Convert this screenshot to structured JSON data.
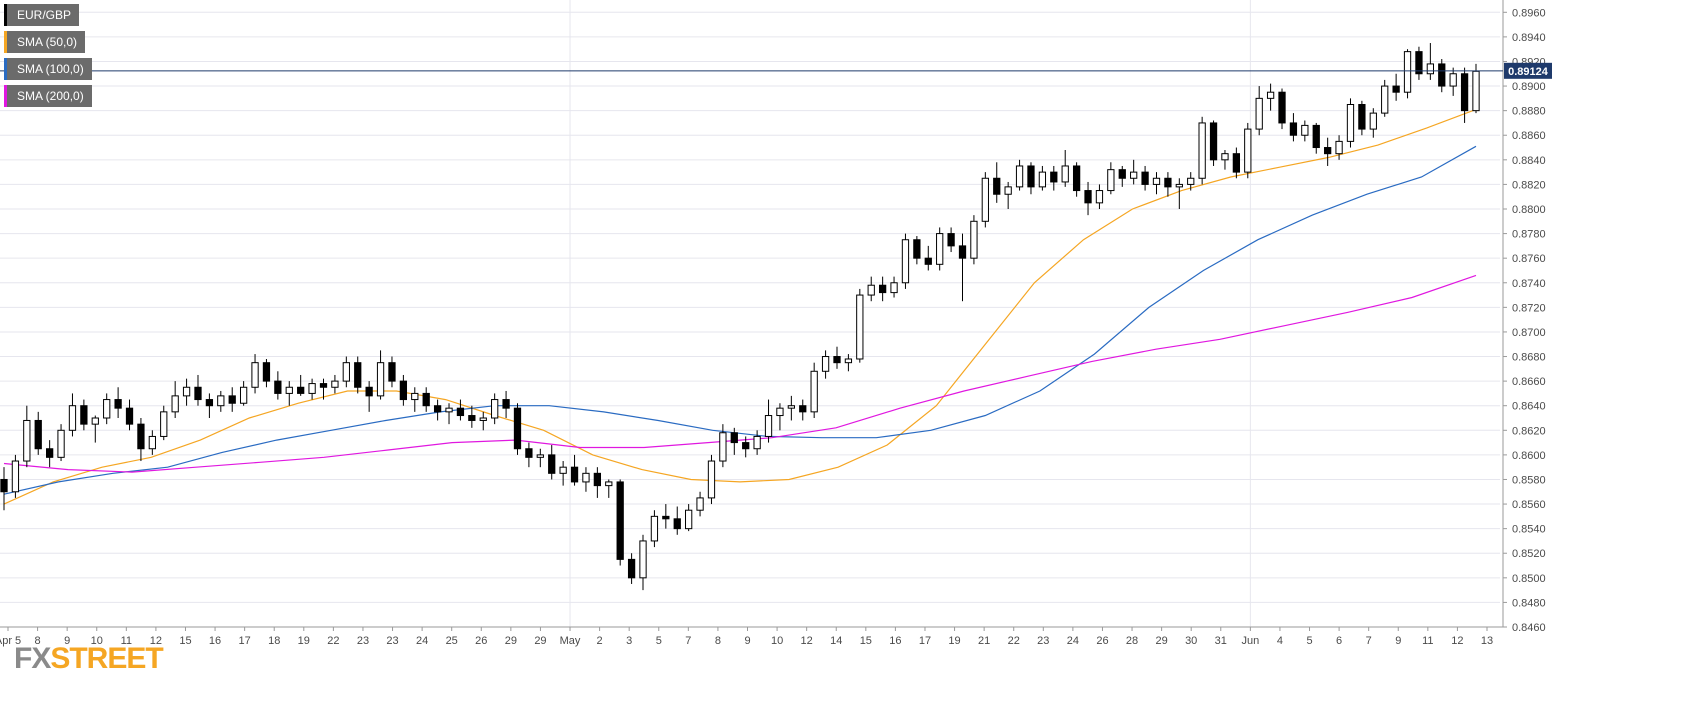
{
  "legend": [
    {
      "label": "EUR/GBP",
      "color": "#000000"
    },
    {
      "label": "SMA (50,0)",
      "color": "#f5a623"
    },
    {
      "label": "SMA (100,0)",
      "color": "#2a6bc2"
    },
    {
      "label": "SMA (200,0)",
      "color": "#e018e0"
    }
  ],
  "logo": {
    "part1": "FX",
    "part2": "STREET",
    "color1": "#8a8a8a",
    "color2": "#f5a623"
  },
  "chart_data": {
    "type": "candlestick",
    "symbol": "EUR/GBP",
    "ylim": [
      0.846,
      0.897
    ],
    "y_ticks": [
      0.846,
      0.848,
      0.85,
      0.852,
      0.854,
      0.856,
      0.858,
      0.86,
      0.862,
      0.864,
      0.866,
      0.868,
      0.87,
      0.872,
      0.874,
      0.876,
      0.878,
      0.88,
      0.882,
      0.884,
      0.886,
      0.888,
      0.89,
      0.892,
      0.894,
      0.896
    ],
    "x_tick_labels": [
      "Apr 5",
      "8",
      "9",
      "10",
      "11",
      "12",
      "15",
      "16",
      "17",
      "18",
      "19",
      "22",
      "23",
      "23",
      "24",
      "25",
      "26",
      "29",
      "29",
      "May",
      "2",
      "3",
      "5",
      "7",
      "8",
      "9",
      "10",
      "12",
      "14",
      "15",
      "16",
      "17",
      "19",
      "21",
      "22",
      "23",
      "24",
      "26",
      "28",
      "29",
      "30",
      "31",
      "Jun",
      "4",
      "5",
      "6",
      "7",
      "9",
      "11",
      "12",
      "13"
    ],
    "current_price": 0.89124,
    "current_price_label": "0.89124",
    "grid": true,
    "candles": [
      [
        0.858,
        0.859,
        0.8555,
        0.857
      ],
      [
        0.857,
        0.86,
        0.8565,
        0.8595
      ],
      [
        0.8595,
        0.864,
        0.859,
        0.8628
      ],
      [
        0.8628,
        0.8635,
        0.86,
        0.8605
      ],
      [
        0.8605,
        0.8612,
        0.859,
        0.8598
      ],
      [
        0.8598,
        0.8625,
        0.8595,
        0.862
      ],
      [
        0.862,
        0.865,
        0.8615,
        0.864
      ],
      [
        0.864,
        0.8645,
        0.862,
        0.8625
      ],
      [
        0.8625,
        0.8632,
        0.861,
        0.863
      ],
      [
        0.863,
        0.865,
        0.8625,
        0.8645
      ],
      [
        0.8645,
        0.8655,
        0.863,
        0.8638
      ],
      [
        0.8638,
        0.8645,
        0.862,
        0.8625
      ],
      [
        0.8625,
        0.863,
        0.8595,
        0.8605
      ],
      [
        0.8605,
        0.862,
        0.86,
        0.8615
      ],
      [
        0.8615,
        0.864,
        0.8612,
        0.8635
      ],
      [
        0.8635,
        0.866,
        0.863,
        0.8648
      ],
      [
        0.8648,
        0.8662,
        0.864,
        0.8655
      ],
      [
        0.8655,
        0.8665,
        0.864,
        0.8645
      ],
      [
        0.8645,
        0.865,
        0.863,
        0.864
      ],
      [
        0.864,
        0.8652,
        0.8635,
        0.8648
      ],
      [
        0.8648,
        0.8655,
        0.8635,
        0.8642
      ],
      [
        0.8642,
        0.866,
        0.864,
        0.8655
      ],
      [
        0.8655,
        0.8682,
        0.865,
        0.8675
      ],
      [
        0.8675,
        0.8678,
        0.8655,
        0.866
      ],
      [
        0.866,
        0.8668,
        0.8645,
        0.865
      ],
      [
        0.865,
        0.866,
        0.864,
        0.8655
      ],
      [
        0.8655,
        0.8665,
        0.8648,
        0.865
      ],
      [
        0.865,
        0.8662,
        0.8645,
        0.8658
      ],
      [
        0.8658,
        0.8662,
        0.8645,
        0.8655
      ],
      [
        0.8655,
        0.8665,
        0.865,
        0.866
      ],
      [
        0.866,
        0.868,
        0.8655,
        0.8675
      ],
      [
        0.8675,
        0.868,
        0.865,
        0.8655
      ],
      [
        0.8655,
        0.866,
        0.8635,
        0.8648
      ],
      [
        0.8648,
        0.8685,
        0.8645,
        0.8675
      ],
      [
        0.8675,
        0.868,
        0.8655,
        0.866
      ],
      [
        0.866,
        0.8665,
        0.864,
        0.8645
      ],
      [
        0.8645,
        0.8655,
        0.8635,
        0.865
      ],
      [
        0.865,
        0.8655,
        0.8635,
        0.864
      ],
      [
        0.864,
        0.8645,
        0.8628,
        0.8635
      ],
      [
        0.8635,
        0.8642,
        0.8625,
        0.8638
      ],
      [
        0.8638,
        0.8645,
        0.8628,
        0.8632
      ],
      [
        0.8632,
        0.864,
        0.8622,
        0.8628
      ],
      [
        0.8628,
        0.8635,
        0.862,
        0.863
      ],
      [
        0.863,
        0.865,
        0.8625,
        0.8645
      ],
      [
        0.8645,
        0.8652,
        0.863,
        0.8638
      ],
      [
        0.8638,
        0.8642,
        0.86,
        0.8605
      ],
      [
        0.8605,
        0.861,
        0.859,
        0.8598
      ],
      [
        0.8598,
        0.8605,
        0.859,
        0.86
      ],
      [
        0.86,
        0.8608,
        0.858,
        0.8585
      ],
      [
        0.8585,
        0.8595,
        0.8575,
        0.859
      ],
      [
        0.859,
        0.86,
        0.8575,
        0.8578
      ],
      [
        0.8578,
        0.859,
        0.857,
        0.8585
      ],
      [
        0.8585,
        0.859,
        0.8565,
        0.8575
      ],
      [
        0.8575,
        0.858,
        0.8565,
        0.8578
      ],
      [
        0.8578,
        0.858,
        0.851,
        0.8515
      ],
      [
        0.8515,
        0.852,
        0.8495,
        0.85
      ],
      [
        0.85,
        0.8535,
        0.849,
        0.853
      ],
      [
        0.853,
        0.8555,
        0.8525,
        0.855
      ],
      [
        0.855,
        0.856,
        0.854,
        0.8548
      ],
      [
        0.8548,
        0.8558,
        0.8535,
        0.854
      ],
      [
        0.854,
        0.856,
        0.8538,
        0.8555
      ],
      [
        0.8555,
        0.857,
        0.855,
        0.8565
      ],
      [
        0.8565,
        0.86,
        0.856,
        0.8595
      ],
      [
        0.8595,
        0.8625,
        0.859,
        0.8618
      ],
      [
        0.8618,
        0.8622,
        0.86,
        0.861
      ],
      [
        0.861,
        0.8615,
        0.8598,
        0.8605
      ],
      [
        0.8605,
        0.862,
        0.86,
        0.8615
      ],
      [
        0.8615,
        0.8645,
        0.861,
        0.8632
      ],
      [
        0.8632,
        0.8642,
        0.862,
        0.8638
      ],
      [
        0.8638,
        0.8648,
        0.8628,
        0.864
      ],
      [
        0.864,
        0.8645,
        0.8628,
        0.8635
      ],
      [
        0.8635,
        0.8675,
        0.863,
        0.8668
      ],
      [
        0.8668,
        0.8685,
        0.8662,
        0.868
      ],
      [
        0.868,
        0.8688,
        0.867,
        0.8675
      ],
      [
        0.8675,
        0.8682,
        0.8668,
        0.8678
      ],
      [
        0.8678,
        0.8735,
        0.8675,
        0.873
      ],
      [
        0.873,
        0.8745,
        0.8725,
        0.8738
      ],
      [
        0.8738,
        0.8745,
        0.8725,
        0.8732
      ],
      [
        0.8732,
        0.8745,
        0.8728,
        0.874
      ],
      [
        0.874,
        0.878,
        0.8735,
        0.8775
      ],
      [
        0.8775,
        0.8778,
        0.8755,
        0.876
      ],
      [
        0.876,
        0.877,
        0.875,
        0.8755
      ],
      [
        0.8755,
        0.8785,
        0.875,
        0.878
      ],
      [
        0.878,
        0.8785,
        0.8765,
        0.877
      ],
      [
        0.877,
        0.878,
        0.8725,
        0.876
      ],
      [
        0.876,
        0.8795,
        0.8755,
        0.879
      ],
      [
        0.879,
        0.883,
        0.8785,
        0.8825
      ],
      [
        0.8825,
        0.8838,
        0.8805,
        0.8812
      ],
      [
        0.8812,
        0.8822,
        0.88,
        0.8818
      ],
      [
        0.8818,
        0.884,
        0.8815,
        0.8835
      ],
      [
        0.8835,
        0.8838,
        0.8812,
        0.8818
      ],
      [
        0.8818,
        0.8835,
        0.8815,
        0.883
      ],
      [
        0.883,
        0.8835,
        0.8815,
        0.8822
      ],
      [
        0.8822,
        0.8848,
        0.8818,
        0.8835
      ],
      [
        0.8835,
        0.8838,
        0.881,
        0.8815
      ],
      [
        0.8815,
        0.8822,
        0.8795,
        0.8805
      ],
      [
        0.8805,
        0.882,
        0.88,
        0.8815
      ],
      [
        0.8815,
        0.8838,
        0.8812,
        0.8832
      ],
      [
        0.8832,
        0.8835,
        0.8818,
        0.8825
      ],
      [
        0.8825,
        0.884,
        0.882,
        0.883
      ],
      [
        0.883,
        0.8835,
        0.8815,
        0.882
      ],
      [
        0.882,
        0.883,
        0.8812,
        0.8825
      ],
      [
        0.8825,
        0.883,
        0.881,
        0.8818
      ],
      [
        0.8818,
        0.8825,
        0.88,
        0.882
      ],
      [
        0.882,
        0.883,
        0.8815,
        0.8825
      ],
      [
        0.8825,
        0.8875,
        0.882,
        0.887
      ],
      [
        0.887,
        0.8872,
        0.8835,
        0.884
      ],
      [
        0.884,
        0.8848,
        0.8832,
        0.8845
      ],
      [
        0.8845,
        0.885,
        0.8825,
        0.883
      ],
      [
        0.883,
        0.887,
        0.8825,
        0.8865
      ],
      [
        0.8865,
        0.89,
        0.886,
        0.889
      ],
      [
        0.889,
        0.8902,
        0.888,
        0.8895
      ],
      [
        0.8895,
        0.8898,
        0.8865,
        0.887
      ],
      [
        0.887,
        0.8878,
        0.8855,
        0.886
      ],
      [
        0.886,
        0.8872,
        0.8855,
        0.8868
      ],
      [
        0.8868,
        0.887,
        0.8845,
        0.885
      ],
      [
        0.885,
        0.8858,
        0.8835,
        0.8845
      ],
      [
        0.8845,
        0.886,
        0.884,
        0.8855
      ],
      [
        0.8855,
        0.889,
        0.885,
        0.8885
      ],
      [
        0.8885,
        0.8888,
        0.886,
        0.8865
      ],
      [
        0.8865,
        0.8882,
        0.8858,
        0.8878
      ],
      [
        0.8878,
        0.8905,
        0.8875,
        0.89
      ],
      [
        0.89,
        0.891,
        0.8888,
        0.8895
      ],
      [
        0.8895,
        0.893,
        0.889,
        0.8928
      ],
      [
        0.8928,
        0.8932,
        0.8905,
        0.891
      ],
      [
        0.891,
        0.8935,
        0.8905,
        0.8918
      ],
      [
        0.8918,
        0.8922,
        0.8895,
        0.89
      ],
      [
        0.89,
        0.8915,
        0.8892,
        0.891
      ],
      [
        0.891,
        0.8915,
        0.887,
        0.888
      ],
      [
        0.888,
        0.8918,
        0.8878,
        0.8912
      ]
    ],
    "sma": [
      {
        "name": "SMA (50,0)",
        "color": "#f5a623",
        "values": [
          0.856,
          0.8578,
          0.859,
          0.8598,
          0.8612,
          0.863,
          0.8642,
          0.8652,
          0.8652,
          0.8645,
          0.8632,
          0.862,
          0.86,
          0.8588,
          0.858,
          0.8578,
          0.858,
          0.859,
          0.8608,
          0.864,
          0.869,
          0.874,
          0.8775,
          0.88,
          0.8815,
          0.8826,
          0.8834,
          0.8842,
          0.8852,
          0.8866,
          0.8881
        ]
      },
      {
        "name": "SMA (100,0)",
        "color": "#2a6bc2",
        "values": [
          0.8568,
          0.8578,
          0.8585,
          0.859,
          0.8602,
          0.8612,
          0.862,
          0.8628,
          0.8635,
          0.864,
          0.864,
          0.8635,
          0.8628,
          0.862,
          0.8615,
          0.8614,
          0.8614,
          0.862,
          0.8632,
          0.8652,
          0.8682,
          0.872,
          0.875,
          0.8775,
          0.8795,
          0.8812,
          0.8826,
          0.8851
        ]
      },
      {
        "name": "SMA (200,0)",
        "color": "#e018e0",
        "values": [
          0.8593,
          0.8588,
          0.8586,
          0.859,
          0.8594,
          0.8598,
          0.8604,
          0.861,
          0.8612,
          0.8606,
          0.8606,
          0.861,
          0.8614,
          0.8622,
          0.8638,
          0.8652,
          0.8664,
          0.8676,
          0.8686,
          0.8694,
          0.8705,
          0.8716,
          0.8728,
          0.8746
        ]
      }
    ]
  }
}
